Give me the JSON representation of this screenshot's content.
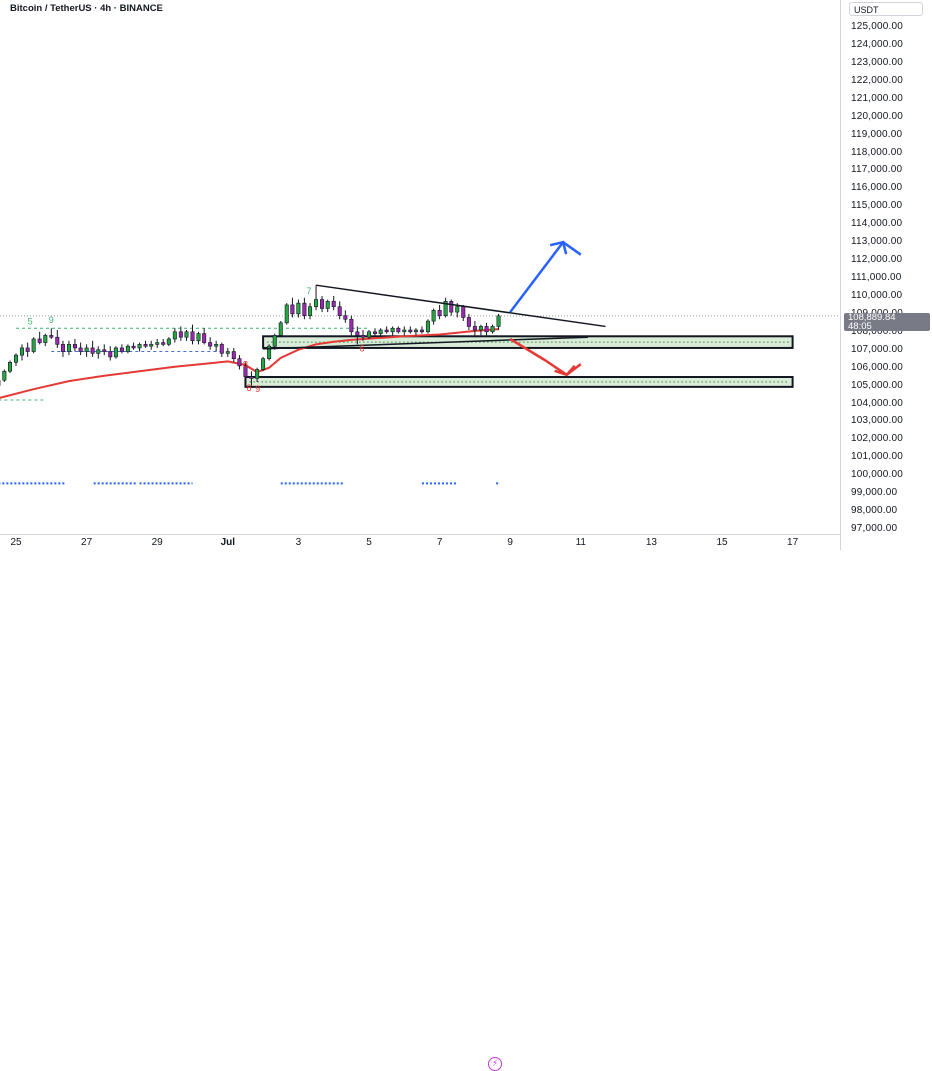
{
  "header": {
    "title": "Bitcoin / TetherUS · 4h · BINANCE"
  },
  "axis": {
    "currency": "USDT",
    "price_labels": [
      "125,000.00",
      "124,000.00",
      "123,000.00",
      "122,000.00",
      "121,000.00",
      "120,000.00",
      "119,000.00",
      "118,000.00",
      "117,000.00",
      "116,000.00",
      "115,000.00",
      "114,000.00",
      "113,000.00",
      "112,000.00",
      "111,000.00",
      "110,000.00",
      "109,000.00",
      "108,000.00",
      "107,000.00",
      "106,000.00",
      "105,000.00",
      "104,000.00",
      "103,000.00",
      "102,000.00",
      "101,000.00",
      "100,000.00",
      "99,000.00",
      "98,000.00",
      "97,000.00"
    ],
    "price_values": [
      125000,
      124000,
      123000,
      122000,
      121000,
      120000,
      119000,
      118000,
      117000,
      116000,
      115000,
      114000,
      113000,
      112000,
      111000,
      110000,
      109000,
      108000,
      107000,
      106000,
      105000,
      104000,
      103000,
      102000,
      101000,
      100000,
      99000,
      98000,
      97000
    ],
    "current_price": "108,889.84",
    "current_price_value": 108889.84,
    "countdown": "48:05",
    "date_labels": [
      "25",
      "27",
      "29",
      "Jul",
      "3",
      "5",
      "7",
      "9",
      "11",
      "13",
      "15",
      "17"
    ],
    "date_days": [
      25,
      27,
      29,
      31,
      33,
      35,
      37,
      39,
      41,
      43,
      45,
      47
    ]
  },
  "chart_data": {
    "type": "candlestick",
    "symbol": "Bitcoin / TetherUS",
    "interval": "4h",
    "exchange": "BINANCE",
    "x_unit": "day (25 = Jun 25, 31 = Jul 1)",
    "y_range": [
      96500,
      125800
    ],
    "candles": [
      {
        "x": 24.5,
        "o": 105000,
        "h": 105500,
        "l": 104700,
        "c": 105300
      },
      {
        "x": 24.67,
        "o": 105300,
        "h": 105900,
        "l": 105200,
        "c": 105800
      },
      {
        "x": 24.83,
        "o": 105800,
        "h": 106400,
        "l": 105700,
        "c": 106300
      },
      {
        "x": 25.0,
        "o": 106300,
        "h": 106800,
        "l": 106100,
        "c": 106700
      },
      {
        "x": 25.17,
        "o": 106700,
        "h": 107300,
        "l": 106400,
        "c": 107100
      },
      {
        "x": 25.33,
        "o": 107100,
        "h": 107400,
        "l": 106600,
        "c": 106900
      },
      {
        "x": 25.5,
        "o": 106900,
        "h": 107700,
        "l": 106800,
        "c": 107600
      },
      {
        "x": 25.67,
        "o": 107600,
        "h": 108000,
        "l": 107300,
        "c": 107400
      },
      {
        "x": 25.83,
        "o": 107400,
        "h": 107900,
        "l": 107200,
        "c": 107800
      },
      {
        "x": 26.0,
        "o": 107800,
        "h": 108200,
        "l": 107600,
        "c": 107700
      },
      {
        "x": 26.17,
        "o": 107700,
        "h": 108100,
        "l": 107100,
        "c": 107300
      },
      {
        "x": 26.33,
        "o": 107300,
        "h": 107500,
        "l": 106600,
        "c": 106900
      },
      {
        "x": 26.5,
        "o": 106900,
        "h": 107500,
        "l": 106700,
        "c": 107300
      },
      {
        "x": 26.67,
        "o": 107300,
        "h": 107600,
        "l": 106900,
        "c": 107100
      },
      {
        "x": 26.83,
        "o": 107100,
        "h": 107400,
        "l": 106700,
        "c": 106900
      },
      {
        "x": 27.0,
        "o": 106900,
        "h": 107300,
        "l": 106600,
        "c": 107100
      },
      {
        "x": 27.17,
        "o": 107100,
        "h": 107500,
        "l": 106600,
        "c": 106800
      },
      {
        "x": 27.33,
        "o": 106800,
        "h": 107200,
        "l": 106500,
        "c": 107000
      },
      {
        "x": 27.5,
        "o": 107000,
        "h": 107300,
        "l": 106700,
        "c": 106900
      },
      {
        "x": 27.67,
        "o": 106900,
        "h": 107200,
        "l": 106400,
        "c": 106600
      },
      {
        "x": 27.83,
        "o": 106600,
        "h": 107200,
        "l": 106500,
        "c": 107100
      },
      {
        "x": 28.0,
        "o": 107100,
        "h": 107300,
        "l": 106800,
        "c": 106900
      },
      {
        "x": 28.17,
        "o": 106900,
        "h": 107300,
        "l": 106800,
        "c": 107200
      },
      {
        "x": 28.33,
        "o": 107200,
        "h": 107400,
        "l": 107000,
        "c": 107100
      },
      {
        "x": 28.5,
        "o": 107100,
        "h": 107400,
        "l": 106900,
        "c": 107300
      },
      {
        "x": 28.67,
        "o": 107300,
        "h": 107500,
        "l": 107100,
        "c": 107200
      },
      {
        "x": 28.83,
        "o": 107200,
        "h": 107500,
        "l": 107000,
        "c": 107300
      },
      {
        "x": 29.0,
        "o": 107300,
        "h": 107600,
        "l": 107100,
        "c": 107400
      },
      {
        "x": 29.17,
        "o": 107400,
        "h": 107600,
        "l": 107200,
        "c": 107300
      },
      {
        "x": 29.33,
        "o": 107300,
        "h": 107700,
        "l": 107200,
        "c": 107600
      },
      {
        "x": 29.5,
        "o": 107600,
        "h": 108200,
        "l": 107400,
        "c": 108000
      },
      {
        "x": 29.67,
        "o": 108000,
        "h": 108300,
        "l": 107500,
        "c": 107700
      },
      {
        "x": 29.83,
        "o": 107700,
        "h": 108100,
        "l": 107500,
        "c": 108000
      },
      {
        "x": 30.0,
        "o": 108000,
        "h": 108400,
        "l": 107300,
        "c": 107500
      },
      {
        "x": 30.17,
        "o": 107500,
        "h": 108000,
        "l": 107300,
        "c": 107900
      },
      {
        "x": 30.33,
        "o": 107900,
        "h": 108200,
        "l": 107300,
        "c": 107400
      },
      {
        "x": 30.5,
        "o": 107400,
        "h": 107700,
        "l": 107000,
        "c": 107200
      },
      {
        "x": 30.67,
        "o": 107200,
        "h": 107500,
        "l": 106900,
        "c": 107300
      },
      {
        "x": 30.83,
        "o": 107300,
        "h": 107400,
        "l": 106600,
        "c": 106800
      },
      {
        "x": 31.0,
        "o": 106800,
        "h": 107100,
        "l": 106600,
        "c": 106900
      },
      {
        "x": 31.17,
        "o": 106900,
        "h": 107100,
        "l": 106300,
        "c": 106500
      },
      {
        "x": 31.33,
        "o": 106500,
        "h": 106700,
        "l": 105900,
        "c": 106100
      },
      {
        "x": 31.5,
        "o": 106100,
        "h": 106300,
        "l": 105300,
        "c": 105500
      },
      {
        "x": 31.67,
        "o": 105500,
        "h": 105800,
        "l": 105000,
        "c": 105400
      },
      {
        "x": 31.83,
        "o": 105400,
        "h": 106000,
        "l": 105200,
        "c": 105900
      },
      {
        "x": 32.0,
        "o": 105900,
        "h": 106600,
        "l": 105800,
        "c": 106500
      },
      {
        "x": 32.17,
        "o": 106500,
        "h": 107300,
        "l": 106400,
        "c": 107200
      },
      {
        "x": 32.33,
        "o": 107200,
        "h": 107900,
        "l": 107000,
        "c": 107800
      },
      {
        "x": 32.5,
        "o": 107800,
        "h": 108600,
        "l": 107700,
        "c": 108500
      },
      {
        "x": 32.67,
        "o": 108500,
        "h": 109600,
        "l": 108400,
        "c": 109500
      },
      {
        "x": 32.83,
        "o": 109500,
        "h": 109900,
        "l": 108800,
        "c": 109000
      },
      {
        "x": 33.0,
        "o": 109000,
        "h": 109800,
        "l": 108800,
        "c": 109600
      },
      {
        "x": 33.17,
        "o": 109600,
        "h": 109900,
        "l": 108700,
        "c": 108900
      },
      {
        "x": 33.33,
        "o": 108900,
        "h": 109600,
        "l": 108700,
        "c": 109400
      },
      {
        "x": 33.5,
        "o": 109400,
        "h": 110600,
        "l": 109200,
        "c": 109800
      },
      {
        "x": 33.67,
        "o": 109800,
        "h": 110000,
        "l": 109100,
        "c": 109300
      },
      {
        "x": 33.83,
        "o": 109300,
        "h": 109800,
        "l": 109100,
        "c": 109700
      },
      {
        "x": 34.0,
        "o": 109700,
        "h": 110000,
        "l": 109200,
        "c": 109400
      },
      {
        "x": 34.17,
        "o": 109400,
        "h": 109700,
        "l": 108700,
        "c": 108900
      },
      {
        "x": 34.33,
        "o": 108900,
        "h": 109200,
        "l": 108500,
        "c": 108700
      },
      {
        "x": 34.5,
        "o": 108700,
        "h": 108900,
        "l": 107800,
        "c": 108000
      },
      {
        "x": 34.67,
        "o": 108000,
        "h": 108300,
        "l": 107300,
        "c": 107800
      },
      {
        "x": 34.83,
        "o": 107800,
        "h": 108100,
        "l": 107500,
        "c": 107700
      },
      {
        "x": 35.0,
        "o": 107700,
        "h": 108100,
        "l": 107600,
        "c": 108000
      },
      {
        "x": 35.17,
        "o": 108000,
        "h": 108200,
        "l": 107800,
        "c": 107900
      },
      {
        "x": 35.33,
        "o": 107900,
        "h": 108200,
        "l": 107700,
        "c": 108100
      },
      {
        "x": 35.5,
        "o": 108100,
        "h": 108300,
        "l": 107900,
        "c": 108000
      },
      {
        "x": 35.67,
        "o": 108000,
        "h": 108300,
        "l": 107800,
        "c": 108200
      },
      {
        "x": 35.83,
        "o": 108200,
        "h": 108300,
        "l": 107900,
        "c": 108000
      },
      {
        "x": 36.0,
        "o": 108000,
        "h": 108300,
        "l": 107800,
        "c": 108100
      },
      {
        "x": 36.17,
        "o": 108100,
        "h": 108300,
        "l": 107900,
        "c": 108000
      },
      {
        "x": 36.33,
        "o": 108000,
        "h": 108200,
        "l": 107800,
        "c": 108100
      },
      {
        "x": 36.5,
        "o": 108100,
        "h": 108300,
        "l": 107900,
        "c": 108000
      },
      {
        "x": 36.67,
        "o": 108000,
        "h": 108700,
        "l": 107900,
        "c": 108600
      },
      {
        "x": 36.83,
        "o": 108600,
        "h": 109300,
        "l": 108400,
        "c": 109200
      },
      {
        "x": 37.0,
        "o": 109200,
        "h": 109500,
        "l": 108700,
        "c": 108900
      },
      {
        "x": 37.17,
        "o": 108900,
        "h": 109900,
        "l": 108800,
        "c": 109700
      },
      {
        "x": 37.33,
        "o": 109700,
        "h": 109800,
        "l": 108900,
        "c": 109100
      },
      {
        "x": 37.5,
        "o": 109100,
        "h": 109600,
        "l": 108800,
        "c": 109400
      },
      {
        "x": 37.67,
        "o": 109400,
        "h": 109500,
        "l": 108600,
        "c": 108800
      },
      {
        "x": 37.83,
        "o": 108800,
        "h": 109000,
        "l": 108100,
        "c": 108300
      },
      {
        "x": 38.0,
        "o": 108300,
        "h": 108600,
        "l": 107700,
        "c": 108100
      },
      {
        "x": 38.17,
        "o": 108100,
        "h": 108400,
        "l": 107800,
        "c": 108300
      },
      {
        "x": 38.33,
        "o": 108300,
        "h": 108500,
        "l": 107800,
        "c": 108000
      },
      {
        "x": 38.5,
        "o": 108000,
        "h": 108400,
        "l": 107900,
        "c": 108300
      },
      {
        "x": 38.67,
        "o": 108300,
        "h": 109000,
        "l": 108100,
        "c": 108890
      }
    ],
    "moving_average": [
      [
        24.5,
        104300
      ],
      [
        25.5,
        104800
      ],
      [
        26.5,
        105250
      ],
      [
        27.5,
        105550
      ],
      [
        28.5,
        105800
      ],
      [
        29.5,
        106050
      ],
      [
        30.5,
        106250
      ],
      [
        31.0,
        106350
      ],
      [
        31.5,
        106150
      ],
      [
        31.83,
        105750
      ],
      [
        32.17,
        106000
      ],
      [
        32.5,
        106550
      ],
      [
        33.0,
        107000
      ],
      [
        33.5,
        107300
      ],
      [
        34.0,
        107450
      ],
      [
        34.5,
        107550
      ],
      [
        35.0,
        107620
      ],
      [
        36.0,
        107750
      ],
      [
        37.0,
        107850
      ],
      [
        37.5,
        107950
      ],
      [
        38.0,
        108050
      ],
      [
        38.67,
        108150
      ]
    ],
    "trendlines": [
      {
        "name": "upper",
        "from": [
          33.5,
          110600
        ],
        "to": [
          41.7,
          108300
        ]
      },
      {
        "name": "lower",
        "from": [
          32.0,
          107050
        ],
        "to": [
          41.2,
          107700
        ]
      }
    ],
    "zones": [
      {
        "name": "upper-zone",
        "x0": 32.0,
        "x1": 47.0,
        "y0": 107100,
        "y1": 107750,
        "color": "#d8ecd8"
      },
      {
        "name": "lower-zone",
        "x0": 31.5,
        "x1": 47.0,
        "y0": 104930,
        "y1": 105480,
        "color": "#d8ecd8"
      }
    ],
    "dashed_levels": [
      {
        "name": "green-dash-top",
        "x0": 25.0,
        "x1": 35.0,
        "y": 108200,
        "color": "#3cb371"
      },
      {
        "name": "blue-dash-mid",
        "x0": 26.0,
        "x1": 30.8,
        "y": 106900,
        "color": "#4a6fd6"
      },
      {
        "name": "green-dash-low",
        "x0": 24.5,
        "x1": 25.8,
        "y": 104200,
        "color": "#3cb371"
      }
    ],
    "arrows": [
      {
        "name": "bullish-arrow",
        "color": "#2962ff",
        "points": [
          [
            39.0,
            109100
          ],
          [
            40.5,
            113000
          ],
          [
            41.0,
            112300
          ]
        ]
      },
      {
        "name": "bearish-arrow",
        "color": "#e53935",
        "points": [
          [
            39.0,
            107600
          ],
          [
            40.0,
            106400
          ],
          [
            40.6,
            105600
          ],
          [
            41.0,
            106200
          ]
        ]
      }
    ],
    "markers": [
      {
        "name": "marker-6",
        "text": "6",
        "x": 34.8,
        "y": 106900,
        "color": "#e53935"
      },
      {
        "name": "marker-8a",
        "text": "8",
        "x": 31.5,
        "y": 106000,
        "color": "#e53935"
      },
      {
        "name": "marker-8b",
        "text": "8",
        "x": 31.6,
        "y": 104700,
        "color": "#e53935"
      },
      {
        "name": "marker-9",
        "text": "9",
        "x": 31.85,
        "y": 104650,
        "color": "#e53935"
      },
      {
        "name": "marker-7",
        "text": "7",
        "x": 33.3,
        "y": 110100,
        "color": "#3cb371"
      },
      {
        "name": "marker-5",
        "text": "5",
        "x": 25.4,
        "y": 108400,
        "color": "#3cb371"
      },
      {
        "name": "marker-9b",
        "text": "9",
        "x": 26.0,
        "y": 108500,
        "color": "#3cb371"
      }
    ],
    "bottom_dots": [
      [
        24.5,
        26.4
      ],
      [
        27.2,
        28.4
      ],
      [
        28.5,
        30.0
      ],
      [
        32.5,
        34.3
      ],
      [
        36.5,
        37.5
      ],
      [
        38.6,
        38.7
      ]
    ],
    "bottom_dots_y": 99550,
    "current_price_line": 108889.84
  }
}
